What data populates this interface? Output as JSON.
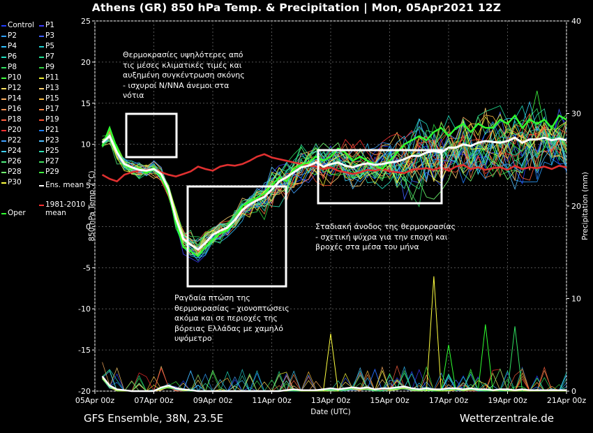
{
  "title": "Athens  (GR)  850 hPa Temp. & Precipitation | Mon, 05Apr2021 12Z",
  "footer": {
    "left": "GFS Ensemble, 38N, 23.5E",
    "right": "Wetterzentrale.de"
  },
  "annotations": [
    "Θερμοκρασίες υψηλότερες από\nτις μέσες κλιματικές τιμές και\nαυξημένη συγκέντρωση σκόνης\n- ισχυροί N/NNA άνεμοι στα\nνότια",
    "Ραγδαία πτώση της\nθερμοκρασίας - χιονοπτώσεις\nακόμα και σε περιοχές της\nβόρειας Ελλάδας με χαμηλό\nυψόμετρο",
    "Σταδιακή άνοδος της θερμοκρασίας\n- σχετική ψύχρα για την εποχή και\nβροχές στα μέσα του μήνα"
  ],
  "legend": [
    {
      "label": "Control",
      "color": "#1e3cff"
    },
    {
      "label": "P1",
      "color": "#3c3cff"
    },
    {
      "label": "P2",
      "color": "#2ea0ff"
    },
    {
      "label": "P3",
      "color": "#4060ff"
    },
    {
      "label": "P4",
      "color": "#30c0ff"
    },
    {
      "label": "P5",
      "color": "#20d0d0"
    },
    {
      "label": "P6",
      "color": "#20e0c0"
    },
    {
      "label": "P7",
      "color": "#20e090"
    },
    {
      "label": "P8",
      "color": "#30e060"
    },
    {
      "label": "P9",
      "color": "#30d040"
    },
    {
      "label": "P10",
      "color": "#40ff40"
    },
    {
      "label": "P11",
      "color": "#f0f030"
    },
    {
      "label": "P12",
      "color": "#ffe060"
    },
    {
      "label": "P13",
      "color": "#ffd070"
    },
    {
      "label": "P14",
      "color": "#ffb060"
    },
    {
      "label": "P15",
      "color": "#ffc040"
    },
    {
      "label": "P16",
      "color": "#ff9050"
    },
    {
      "label": "P17",
      "color": "#ff8040"
    },
    {
      "label": "P18",
      "color": "#ff6040"
    },
    {
      "label": "P19",
      "color": "#ff5030"
    },
    {
      "label": "P20",
      "color": "#ff3030"
    },
    {
      "label": "P21",
      "color": "#2080ff"
    },
    {
      "label": "P22",
      "color": "#40a0ff"
    },
    {
      "label": "P23",
      "color": "#50c0ff"
    },
    {
      "label": "P24",
      "color": "#40d0ff"
    },
    {
      "label": "P25",
      "color": "#30e0b0"
    },
    {
      "label": "P26",
      "color": "#50f080"
    },
    {
      "label": "P27",
      "color": "#40e060"
    },
    {
      "label": "P28",
      "color": "#70ff70"
    },
    {
      "label": "P29",
      "color": "#40f040"
    },
    {
      "label": "P30",
      "color": "#ffff40"
    },
    {
      "label": "Ens. mean",
      "color": "#ffffff"
    },
    {
      "label": "Oper",
      "color": "#30ff30"
    },
    {
      "label": "1981-2010\nmean",
      "color": "#ff3030"
    }
  ],
  "chart_data": {
    "type": "line",
    "title": "Athens  (GR)  850 hPa Temp. & Precipitation | Mon, 05Apr2021 12Z",
    "xlabel": "Date (UTC)",
    "ylabel": "850 hPa Temp. (°C)",
    "ylabel_right": "Precipitation (mm)",
    "ylim": [
      -20,
      25
    ],
    "ylim_right": [
      0,
      40
    ],
    "yticks": [
      -20,
      -15,
      -10,
      -5,
      0,
      5,
      10,
      15,
      20,
      25
    ],
    "yticks_right": [
      0,
      10,
      20,
      30,
      40
    ],
    "x_ticks": [
      "05Apr 00z",
      "07Apr 00z",
      "09Apr 00z",
      "11Apr 00z",
      "13Apr 00z",
      "15Apr 00z",
      "17Apr 00z",
      "19Apr 00z",
      "21Apr 00z"
    ],
    "x_hours": [
      6,
      12,
      18,
      24,
      30,
      36,
      42,
      48,
      54,
      60,
      66,
      72,
      78,
      84,
      90,
      96,
      102,
      108,
      114,
      120,
      126,
      132,
      138,
      144,
      150,
      156,
      162,
      168,
      174,
      180,
      186,
      192,
      198,
      204,
      210,
      216,
      222,
      228,
      234,
      240,
      246,
      252,
      258,
      264,
      270,
      276,
      282,
      288,
      294,
      300,
      306,
      312,
      318,
      324,
      330,
      336,
      342,
      348,
      354,
      360,
      366,
      372,
      378,
      384
    ],
    "grid": true,
    "series": [
      {
        "name": "Ens. mean",
        "values": [
          10.2,
          11.0,
          9.0,
          7.6,
          7.2,
          6.9,
          6.8,
          7.0,
          6.4,
          4.5,
          1.0,
          -1.5,
          -2.2,
          -2.8,
          -2.0,
          -1.0,
          -0.5,
          -0.1,
          0.8,
          2.0,
          2.7,
          3.2,
          3.6,
          4.5,
          5.5,
          6.0,
          6.6,
          7.2,
          7.4,
          7.8,
          7.3,
          7.6,
          7.8,
          7.4,
          7.2,
          7.5,
          7.7,
          7.5,
          7.6,
          7.8,
          7.9,
          8.2,
          8.6,
          8.6,
          9.0,
          9.2,
          9.0,
          9.6,
          9.6,
          10.0,
          9.8,
          10.2,
          10.4,
          10.3,
          10.2,
          10.4,
          10.8,
          10.2,
          10.6,
          10.6,
          10.8,
          10.5,
          10.7,
          10.5
        ]
      },
      {
        "name": "Oper",
        "values": [
          9.8,
          12.0,
          9.5,
          7.5,
          7.0,
          7.1,
          6.5,
          7.2,
          6.0,
          4.0,
          0.5,
          -2.5,
          -3.0,
          -3.6,
          -2.5,
          -1.5,
          -0.8,
          -0.5,
          0.8,
          2.5,
          3.0,
          3.5,
          4.0,
          5.0,
          6.0,
          5.5,
          7.0,
          7.5,
          7.8,
          8.5,
          8.0,
          8.5,
          9.5,
          9.0,
          8.0,
          8.5,
          8.0,
          7.5,
          7.0,
          8.0,
          9.0,
          10.0,
          10.5,
          11.0,
          10.5,
          11.5,
          12.0,
          11.0,
          12.0,
          12.5,
          11.5,
          12.5,
          12.0,
          12.0,
          13.0,
          12.5,
          13.5,
          12.0,
          13.0,
          12.5,
          13.0,
          12.0,
          13.5,
          13.0
        ]
      },
      {
        "name": "1981-2010\nmean",
        "values": [
          6.3,
          5.8,
          5.5,
          6.3,
          6.6,
          6.8,
          6.9,
          7.0,
          6.6,
          6.3,
          6.1,
          6.4,
          6.7,
          7.3,
          7.0,
          6.8,
          7.3,
          7.5,
          7.4,
          7.6,
          8.0,
          8.5,
          8.8,
          8.4,
          8.2,
          8.0,
          7.8,
          7.6,
          7.4,
          7.3,
          7.0,
          7.2,
          6.8,
          6.6,
          6.4,
          6.6,
          6.9,
          6.8,
          7.0,
          6.7,
          6.6,
          6.5,
          6.9,
          7.0,
          7.1,
          6.9,
          7.2,
          6.8,
          7.3,
          7.5,
          7.0,
          7.2,
          6.9,
          7.1,
          7.2,
          6.9,
          7.4,
          7.0,
          7.2,
          7.1,
          7.3,
          7.0,
          7.4,
          7.2
        ]
      },
      {
        "name": "Precipitation (Ens. mean)",
        "values": [
          1.6,
          0.6,
          0.2,
          0.1,
          0,
          0,
          0,
          0,
          0.4,
          0.6,
          0.3,
          0.2,
          0.1,
          0,
          0,
          0,
          0,
          0,
          0,
          0,
          0,
          0,
          0,
          0,
          0,
          0.1,
          0.2,
          0.1,
          0.1,
          0.1,
          0.2,
          0.3,
          0.2,
          0.3,
          0.4,
          0.3,
          0.4,
          0.2,
          0.3,
          0.3,
          0.4,
          0.5,
          0.3,
          0.2,
          0.3,
          0.2,
          0.2,
          0.3,
          0.3,
          0.2,
          0.3,
          0.2,
          0.2,
          0.1,
          0.2,
          0.2,
          0.1,
          0.2,
          0.1,
          0.1,
          0.1,
          0.1,
          0.1,
          0.1
        ]
      }
    ],
    "precip_peaks": [
      {
        "hour": 192,
        "mm": 6.2
      },
      {
        "hour": 276,
        "mm": 12.4
      },
      {
        "hour": 288,
        "mm": 5.0
      },
      {
        "hour": 318,
        "mm": 7.2
      },
      {
        "hour": 342,
        "mm": 7.0
      }
    ]
  }
}
